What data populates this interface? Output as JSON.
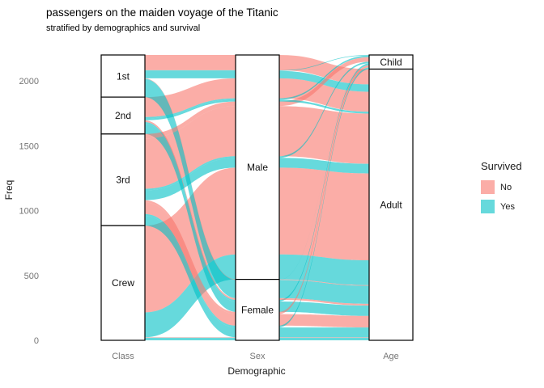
{
  "title": "passengers on the maiden voyage of the Titanic",
  "subtitle": "stratified by demographics and survival",
  "axis": {
    "y_label": "Freq",
    "x_label": "Demographic",
    "y_ticks": [
      0,
      500,
      1000,
      1500,
      2000
    ],
    "x_categories": [
      "Class",
      "Sex",
      "Age"
    ]
  },
  "legend": {
    "title": "Survived",
    "position": "right",
    "entries": [
      {
        "label": "No",
        "color": "#F8766D"
      },
      {
        "label": "Yes",
        "color": "#00BFC4"
      }
    ]
  },
  "chart_data": {
    "type": "alluvial",
    "title": "passengers on the maiden voyage of the Titanic",
    "subtitle": "stratified by demographics and survival",
    "xlabel": "Demographic",
    "ylabel": "Freq",
    "ylim": [
      0,
      2201
    ],
    "grid": false,
    "axes": [
      "Class",
      "Sex",
      "Age"
    ],
    "strata": {
      "Class": [
        "1st",
        "2nd",
        "3rd",
        "Crew"
      ],
      "Sex": [
        "Male",
        "Female"
      ],
      "Age": [
        "Child",
        "Adult"
      ]
    },
    "stratum_totals": {
      "Class": {
        "1st": 325,
        "2nd": 285,
        "3rd": 706,
        "Crew": 885
      },
      "Sex": {
        "Male": 1731,
        "Female": 470
      },
      "Age": {
        "Child": 109,
        "Adult": 2092
      }
    },
    "fill_variable": "Survived",
    "colors": {
      "No": "#F8766D",
      "Yes": "#00BFC4"
    },
    "ribbon_opacity": 0.6,
    "flows": [
      {
        "Class": "1st",
        "Sex": "Male",
        "Age": "Child",
        "Survived": "Yes",
        "Freq": 5
      },
      {
        "Class": "1st",
        "Sex": "Male",
        "Age": "Adult",
        "Survived": "No",
        "Freq": 118
      },
      {
        "Class": "1st",
        "Sex": "Male",
        "Age": "Adult",
        "Survived": "Yes",
        "Freq": 57
      },
      {
        "Class": "1st",
        "Sex": "Female",
        "Age": "Child",
        "Survived": "Yes",
        "Freq": 1
      },
      {
        "Class": "1st",
        "Sex": "Female",
        "Age": "Adult",
        "Survived": "No",
        "Freq": 4
      },
      {
        "Class": "1st",
        "Sex": "Female",
        "Age": "Adult",
        "Survived": "Yes",
        "Freq": 140
      },
      {
        "Class": "2nd",
        "Sex": "Male",
        "Age": "Child",
        "Survived": "Yes",
        "Freq": 11
      },
      {
        "Class": "2nd",
        "Sex": "Male",
        "Age": "Adult",
        "Survived": "No",
        "Freq": 154
      },
      {
        "Class": "2nd",
        "Sex": "Male",
        "Age": "Adult",
        "Survived": "Yes",
        "Freq": 14
      },
      {
        "Class": "2nd",
        "Sex": "Female",
        "Age": "Child",
        "Survived": "Yes",
        "Freq": 13
      },
      {
        "Class": "2nd",
        "Sex": "Female",
        "Age": "Adult",
        "Survived": "No",
        "Freq": 13
      },
      {
        "Class": "2nd",
        "Sex": "Female",
        "Age": "Adult",
        "Survived": "Yes",
        "Freq": 80
      },
      {
        "Class": "3rd",
        "Sex": "Male",
        "Age": "Child",
        "Survived": "No",
        "Freq": 35
      },
      {
        "Class": "3rd",
        "Sex": "Male",
        "Age": "Child",
        "Survived": "Yes",
        "Freq": 13
      },
      {
        "Class": "3rd",
        "Sex": "Male",
        "Age": "Adult",
        "Survived": "No",
        "Freq": 387
      },
      {
        "Class": "3rd",
        "Sex": "Male",
        "Age": "Adult",
        "Survived": "Yes",
        "Freq": 75
      },
      {
        "Class": "3rd",
        "Sex": "Female",
        "Age": "Child",
        "Survived": "No",
        "Freq": 17
      },
      {
        "Class": "3rd",
        "Sex": "Female",
        "Age": "Child",
        "Survived": "Yes",
        "Freq": 14
      },
      {
        "Class": "3rd",
        "Sex": "Female",
        "Age": "Adult",
        "Survived": "No",
        "Freq": 89
      },
      {
        "Class": "3rd",
        "Sex": "Female",
        "Age": "Adult",
        "Survived": "Yes",
        "Freq": 76
      },
      {
        "Class": "Crew",
        "Sex": "Male",
        "Age": "Adult",
        "Survived": "No",
        "Freq": 670
      },
      {
        "Class": "Crew",
        "Sex": "Male",
        "Age": "Adult",
        "Survived": "Yes",
        "Freq": 192
      },
      {
        "Class": "Crew",
        "Sex": "Female",
        "Age": "Adult",
        "Survived": "No",
        "Freq": 3
      },
      {
        "Class": "Crew",
        "Sex": "Female",
        "Age": "Adult",
        "Survived": "Yes",
        "Freq": 20
      }
    ]
  }
}
